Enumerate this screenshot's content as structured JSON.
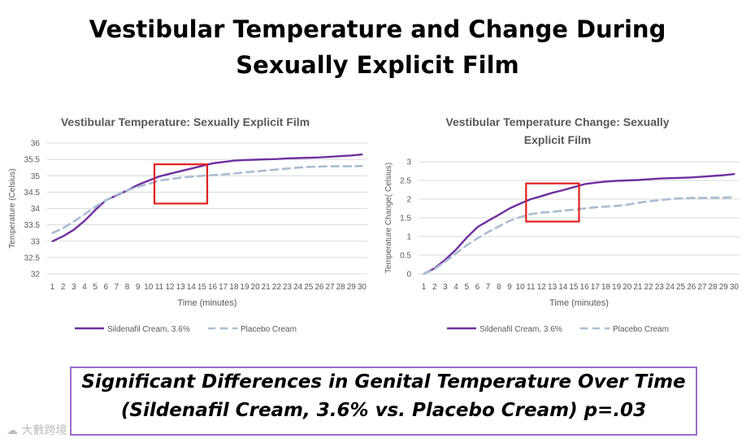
{
  "slide": {
    "title_line1": "Vestibular Temperature and Change During",
    "title_line2": "Sexually Explicit Film"
  },
  "callout": {
    "line1": "Significant Differences in Genital Temperature Over Time",
    "line2": "(Sildenafil Cream, 3.6% vs. Placebo Cream) p=.03"
  },
  "watermark": {
    "icon": "cloud-logo-icon",
    "text": "大數跨境"
  },
  "colors": {
    "sildenafil": "#7030a0",
    "placebo": "#a9bcd1",
    "highlight": "#e02020",
    "callout_border": "#9b6cc9"
  },
  "chart_data": [
    {
      "type": "line",
      "title": "Vestibular Temperature: Sexually Explicit Film",
      "title_lines": [
        "Vestibular Temperature: Sexually Explicit Film"
      ],
      "xlabel": "Time (minutes)",
      "ylabel": "Temperature (Celsius)",
      "categories": [
        "1",
        "2",
        "3",
        "4",
        "5",
        "6",
        "7",
        "8",
        "9",
        "10",
        "11",
        "12",
        "13",
        "14",
        "15",
        "16",
        "17",
        "18",
        "19",
        "20",
        "21",
        "22",
        "23",
        "24",
        "25",
        "26",
        "27",
        "28",
        "29",
        "30"
      ],
      "ylim": [
        32,
        36
      ],
      "yticks": [
        "32",
        "32.5",
        "33",
        "33.5",
        "34",
        "34.5",
        "35",
        "35.5",
        "36"
      ],
      "grid": true,
      "legend": "bottom",
      "highlight_x_range": [
        11,
        15
      ],
      "highlight_y_range": [
        34.15,
        35.35
      ],
      "series": [
        {
          "name": "Sildenafil Cream, 3.6%",
          "style": "solid",
          "values": [
            33.0,
            33.15,
            33.35,
            33.62,
            33.95,
            34.25,
            34.4,
            34.55,
            34.72,
            34.85,
            34.98,
            35.06,
            35.14,
            35.22,
            35.3,
            35.38,
            35.42,
            35.46,
            35.48,
            35.49,
            35.5,
            35.51,
            35.53,
            35.54,
            35.55,
            35.56,
            35.58,
            35.6,
            35.62,
            35.65
          ]
        },
        {
          "name": "Placebo Cream",
          "style": "dashed",
          "values": [
            33.25,
            33.4,
            33.6,
            33.82,
            34.05,
            34.25,
            34.42,
            34.55,
            34.66,
            34.75,
            34.85,
            34.9,
            34.94,
            34.97,
            35.0,
            35.02,
            35.04,
            35.07,
            35.1,
            35.13,
            35.16,
            35.19,
            35.22,
            35.25,
            35.27,
            35.28,
            35.29,
            35.29,
            35.29,
            35.3
          ]
        }
      ]
    },
    {
      "type": "line",
      "title": "Vestibular Temperature Change: Sexually Explicit Film",
      "title_lines": [
        "Vestibular Temperature Change: Sexually",
        "Explicit Film"
      ],
      "xlabel": "Time (minutes)",
      "ylabel": "Temperature Change( Celsius)",
      "categories": [
        "1",
        "2",
        "3",
        "4",
        "5",
        "6",
        "7",
        "8",
        "9",
        "10",
        "11",
        "12",
        "13",
        "14",
        "15",
        "16",
        "17",
        "18",
        "19",
        "20",
        "21",
        "22",
        "23",
        "24",
        "25",
        "26",
        "27",
        "28",
        "29",
        "30"
      ],
      "ylim": [
        0,
        3
      ],
      "yticks": [
        "0",
        "0.5",
        "1",
        "1.5",
        "2",
        "2.5",
        "3"
      ],
      "grid": true,
      "legend": "bottom",
      "highlight_x_range": [
        11,
        15
      ],
      "highlight_y_range": [
        1.4,
        2.42
      ],
      "series": [
        {
          "name": "Sildenafil Cream, 3.6%",
          "style": "solid",
          "values": [
            0.0,
            0.15,
            0.38,
            0.65,
            0.97,
            1.25,
            1.42,
            1.58,
            1.75,
            1.88,
            2.0,
            2.08,
            2.17,
            2.24,
            2.32,
            2.4,
            2.44,
            2.47,
            2.49,
            2.5,
            2.51,
            2.53,
            2.55,
            2.56,
            2.57,
            2.58,
            2.6,
            2.62,
            2.64,
            2.67
          ]
        },
        {
          "name": "Placebo Cream",
          "style": "dashed",
          "values": [
            0.0,
            0.13,
            0.33,
            0.55,
            0.77,
            0.95,
            1.12,
            1.27,
            1.42,
            1.52,
            1.6,
            1.64,
            1.66,
            1.69,
            1.72,
            1.75,
            1.78,
            1.8,
            1.82,
            1.85,
            1.9,
            1.94,
            1.97,
            2.0,
            2.02,
            2.03,
            2.03,
            2.04,
            2.04,
            2.05
          ]
        }
      ]
    }
  ]
}
